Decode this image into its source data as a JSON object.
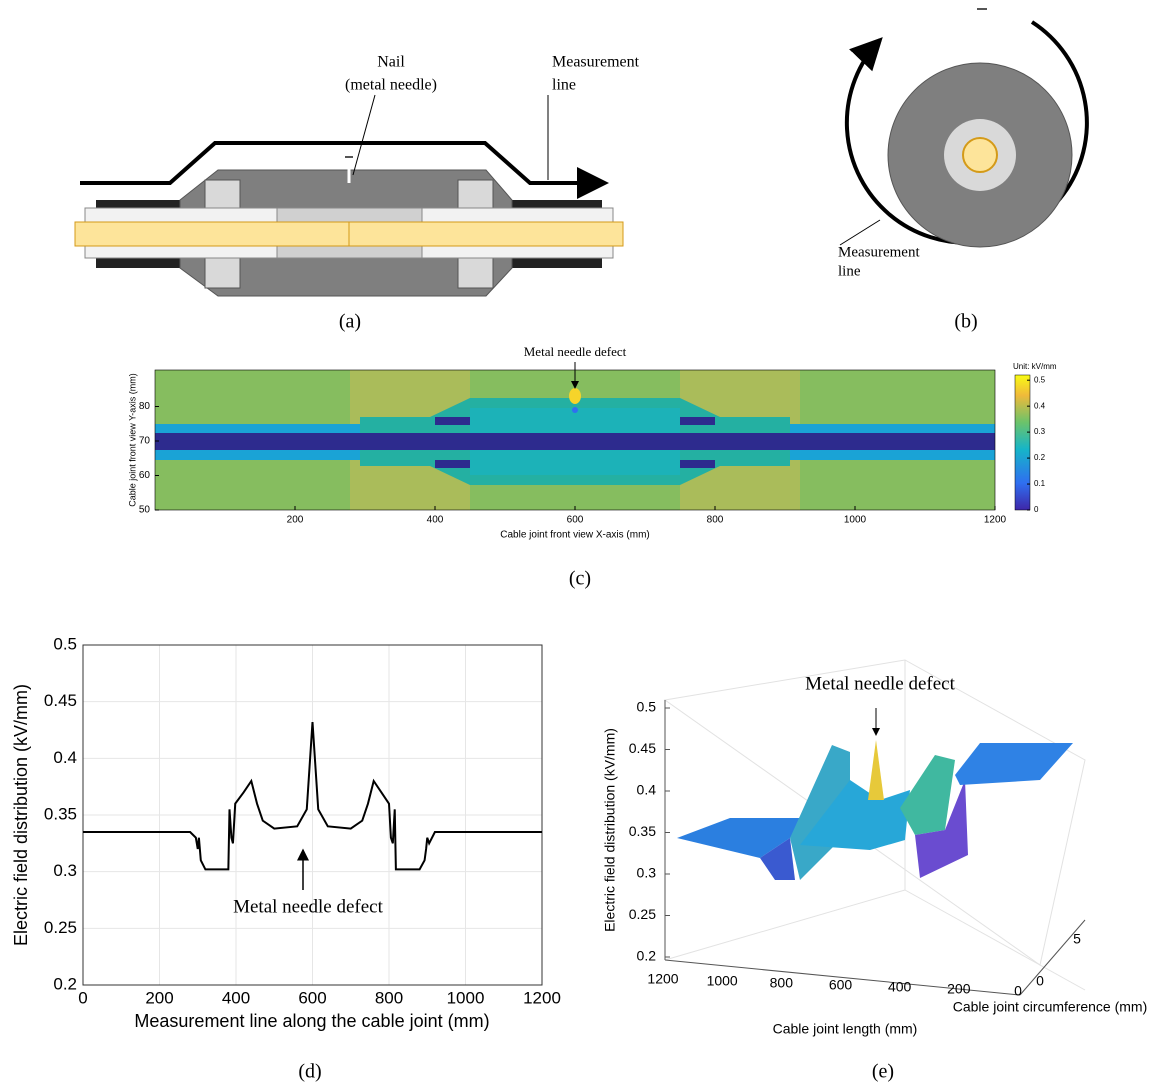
{
  "diagram_a": {
    "label": "(a)",
    "nail": [
      "Nail",
      "(metal needle)"
    ],
    "measurement": [
      "Measurement",
      "line"
    ]
  },
  "diagram_b": {
    "label": "(b)",
    "measurement": [
      "Measurement",
      "line"
    ]
  },
  "chart_data": [
    {
      "type": "heatmap",
      "panel": "(c)",
      "annotation": "Metal needle defect",
      "xlabel": "Cable joint front view X-axis (mm)",
      "ylabel": "Cable joint front view Y-axis (mm)",
      "xlim": [
        0,
        1200
      ],
      "xticks": [
        200,
        400,
        600,
        800,
        1000,
        1200
      ],
      "ylim": [
        50,
        90
      ],
      "yticks": [
        50,
        60,
        70,
        80
      ],
      "colorbar": {
        "title": "Unit: kV/mm",
        "lim": [
          0,
          0.52
        ],
        "ticks": [
          0,
          0.1,
          0.2,
          0.3,
          0.4,
          0.5
        ]
      }
    },
    {
      "type": "line",
      "panel": "(d)",
      "annotation": "Metal needle defect",
      "xlabel": "Measurement line along the cable joint (mm)",
      "ylabel": "Electric field distribution (kV/mm)",
      "xlim": [
        0,
        1200
      ],
      "xticks": [
        0,
        200,
        400,
        600,
        800,
        1000,
        1200
      ],
      "ylim": [
        0.2,
        0.5
      ],
      "yticks": [
        0.2,
        0.25,
        0.3,
        0.35,
        0.4,
        0.45,
        0.5
      ],
      "grid": true,
      "color": "#000000",
      "x": [
        0,
        280,
        295,
        300,
        303,
        308,
        320,
        380,
        383,
        388,
        392,
        398,
        420,
        440,
        455,
        470,
        500,
        560,
        585,
        600,
        615,
        640,
        700,
        730,
        745,
        760,
        780,
        800,
        805,
        810,
        815,
        818,
        880,
        893,
        897,
        900,
        905,
        920,
        1200
      ],
      "values": [
        0.335,
        0.335,
        0.33,
        0.32,
        0.33,
        0.31,
        0.302,
        0.302,
        0.355,
        0.33,
        0.325,
        0.36,
        0.37,
        0.38,
        0.36,
        0.345,
        0.338,
        0.34,
        0.355,
        0.432,
        0.355,
        0.34,
        0.338,
        0.345,
        0.36,
        0.38,
        0.37,
        0.36,
        0.33,
        0.325,
        0.355,
        0.302,
        0.302,
        0.31,
        0.32,
        0.33,
        0.325,
        0.335,
        0.335
      ]
    },
    {
      "type": "surface3d",
      "panel": "(e)",
      "annotation": "Metal needle defect",
      "zlabel": "Electric field distribution (kV/mm)",
      "xlabel": "Cable joint length (mm)",
      "ylabel": "Cable joint circumference (mm)",
      "zlim": [
        0.2,
        0.5
      ],
      "zticks": [
        0.2,
        0.25,
        0.3,
        0.35,
        0.4,
        0.45,
        0.5
      ],
      "xticks": [
        1200,
        1000,
        800,
        600,
        400,
        200,
        0
      ],
      "yticks": [
        0,
        5
      ]
    }
  ]
}
